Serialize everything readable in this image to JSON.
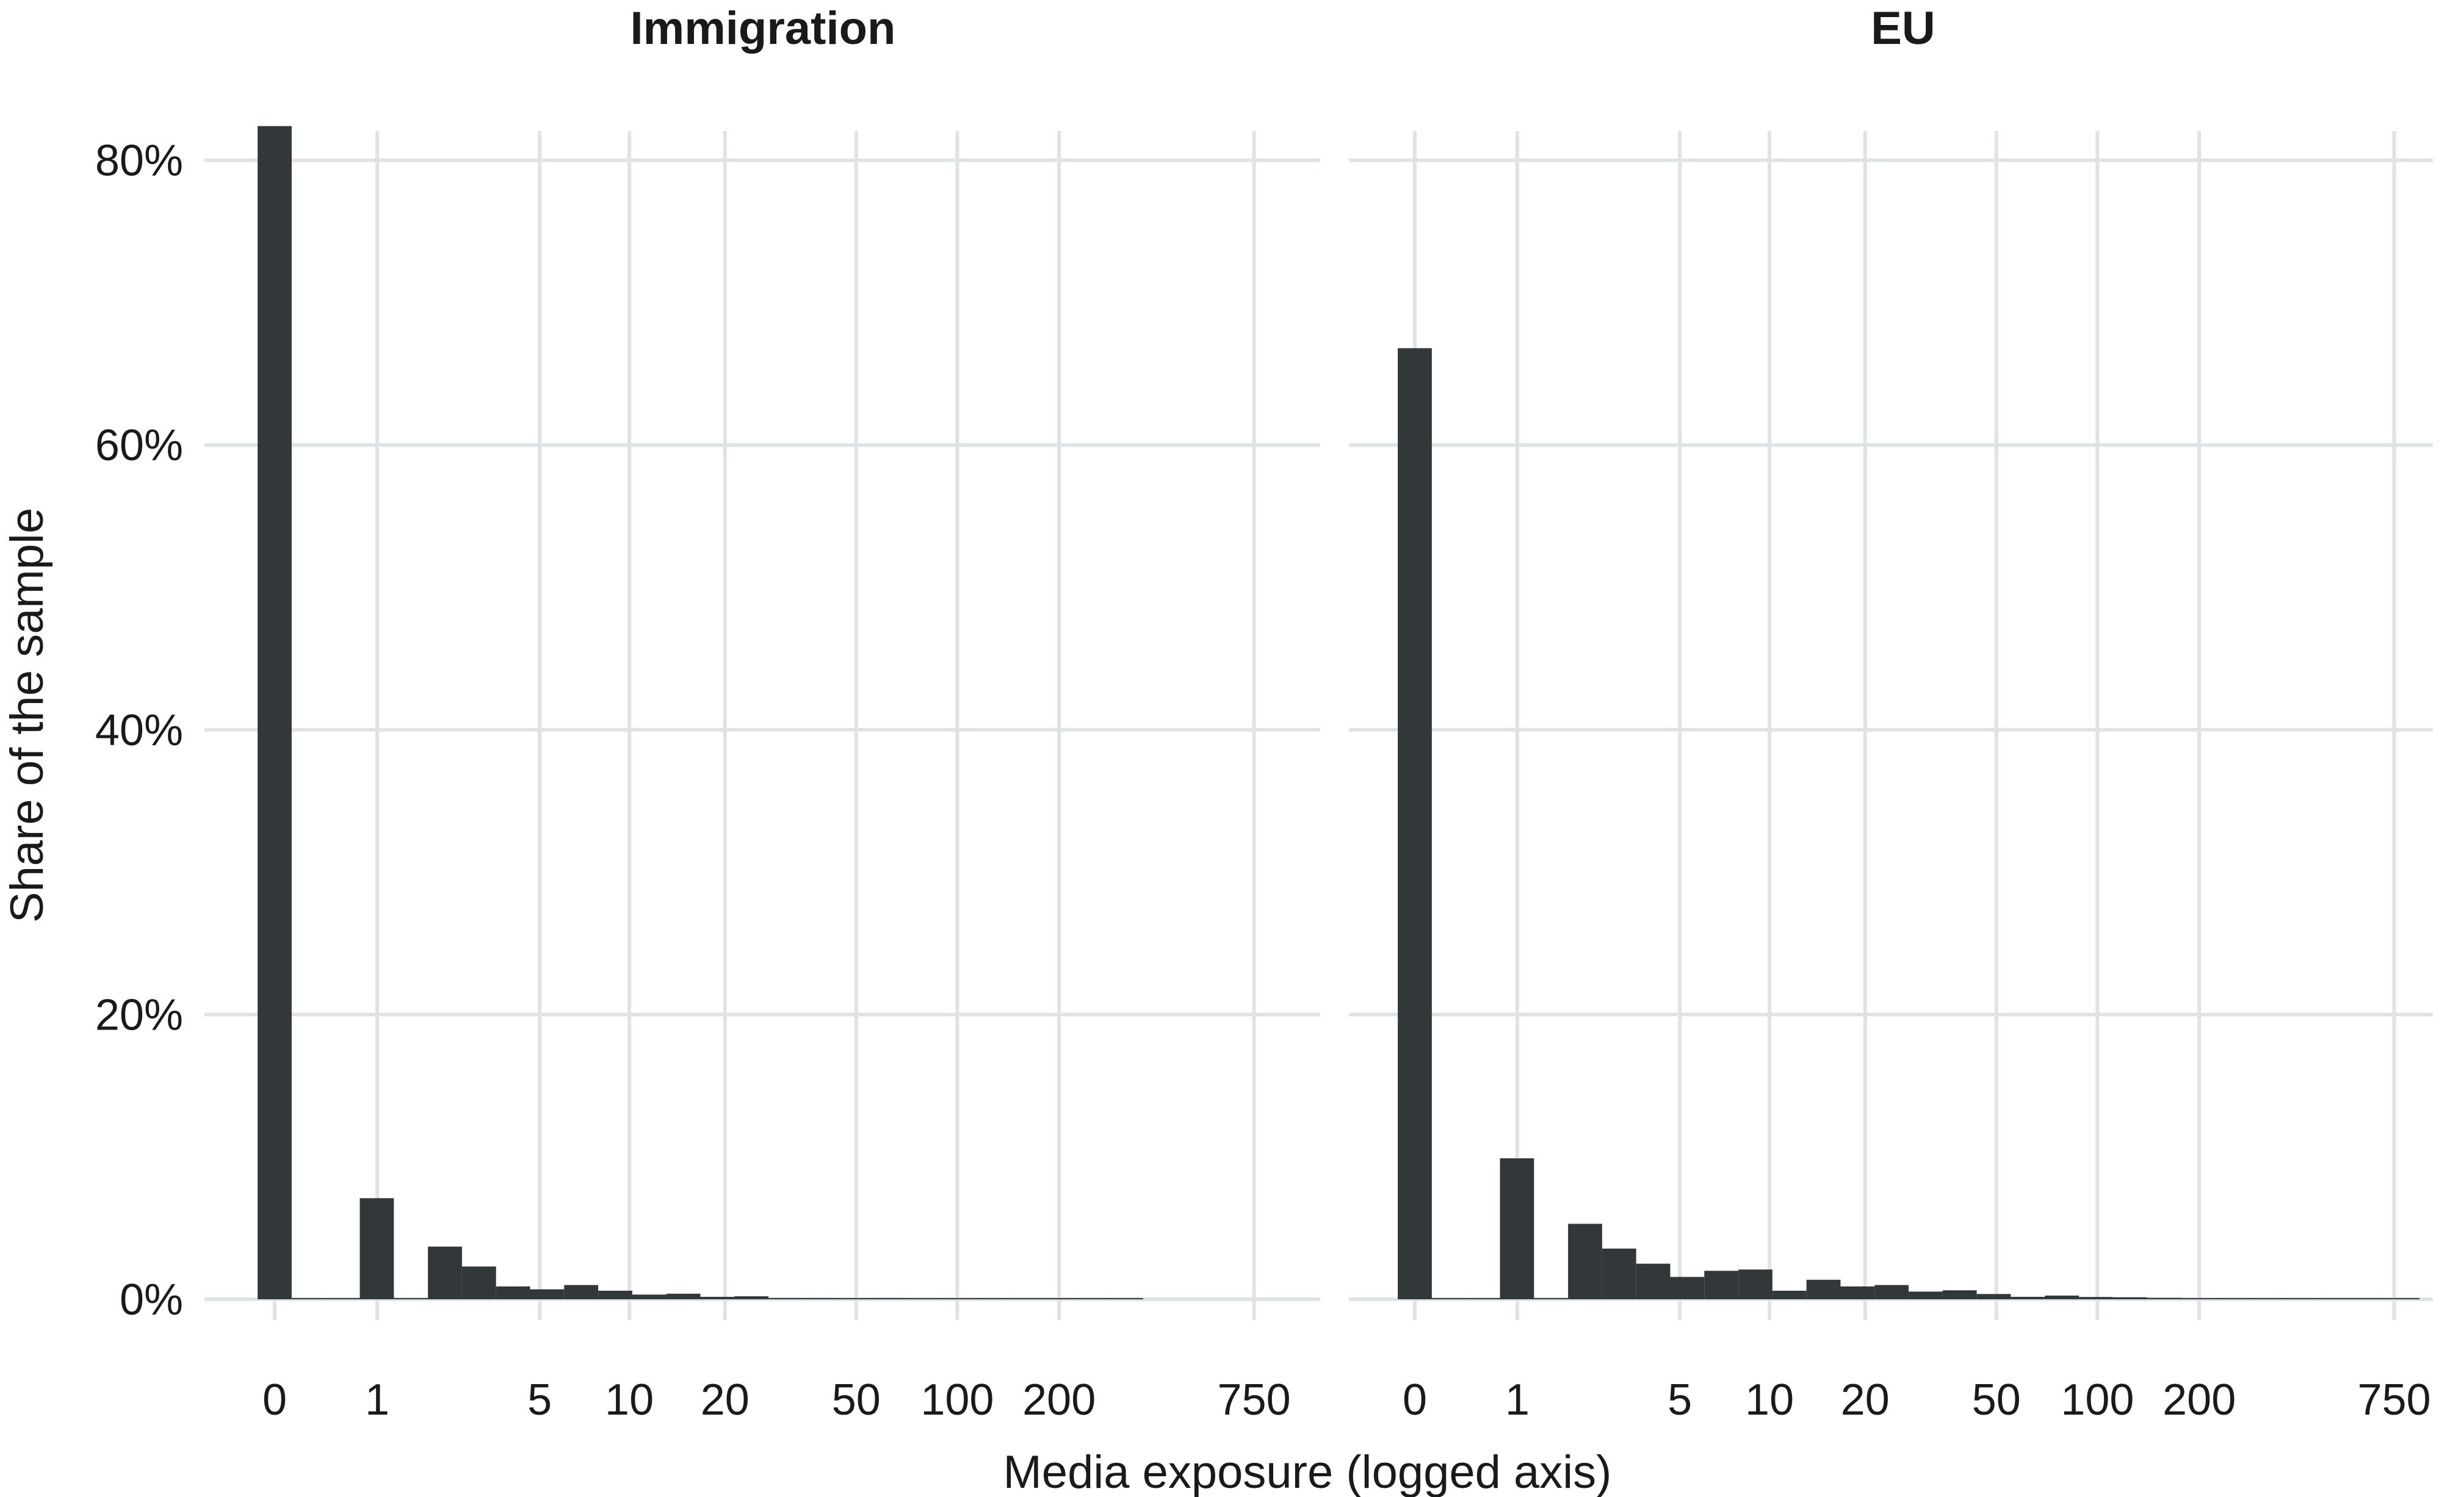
{
  "chart_data": [
    {
      "type": "bar",
      "title": "Immigration",
      "xlabel": "Media exposure (logged axis)",
      "ylabel": "Share of the sample",
      "x_scale": "log10(x+1)",
      "bin_width_log10": 0.1,
      "x_ticks": [
        "0",
        "1",
        "5",
        "10",
        "20",
        "50",
        "100",
        "200",
        "750"
      ],
      "y_ticks": [
        "0%",
        "20%",
        "40%",
        "60%",
        "80%"
      ],
      "ylim": [
        0,
        84
      ],
      "grid": true,
      "bar_color": "#323839",
      "bin_log10_centers": [
        0,
        0.1,
        0.2,
        0.3,
        0.4,
        0.5,
        0.6,
        0.7,
        0.8,
        0.9,
        1.0,
        1.1,
        1.2,
        1.3,
        1.4,
        1.5,
        1.6,
        1.7,
        1.8,
        1.9,
        2.0,
        2.1,
        2.2,
        2.3,
        2.4,
        2.5
      ],
      "values": [
        82.4,
        0,
        0,
        7.1,
        0,
        3.7,
        2.3,
        0.9,
        0.7,
        1.0,
        0.6,
        0.33,
        0.39,
        0.17,
        0.21,
        0.09,
        0.09,
        0.04,
        0.09,
        0.06,
        0.03,
        0.03,
        0.04,
        0,
        0,
        0.04
      ]
    },
    {
      "type": "bar",
      "title": "EU",
      "xlabel": "Media exposure (logged axis)",
      "ylabel": "Share of the sample",
      "x_scale": "log10(x+1)",
      "bin_width_log10": 0.1,
      "x_ticks": [
        "0",
        "1",
        "5",
        "10",
        "20",
        "50",
        "100",
        "200",
        "750"
      ],
      "y_ticks": [
        "0%",
        "20%",
        "40%",
        "60%",
        "80%"
      ],
      "ylim": [
        0,
        84
      ],
      "grid": true,
      "bar_color": "#323839",
      "bin_log10_centers": [
        0,
        0.1,
        0.2,
        0.3,
        0.4,
        0.5,
        0.6,
        0.7,
        0.8,
        0.9,
        1.0,
        1.1,
        1.2,
        1.3,
        1.4,
        1.5,
        1.6,
        1.7,
        1.8,
        1.9,
        2.0,
        2.1,
        2.2,
        2.3,
        2.4,
        2.5,
        2.6,
        2.7,
        2.8,
        2.9
      ],
      "values": [
        66.8,
        0,
        0,
        9.9,
        0,
        5.3,
        3.56,
        2.5,
        1.57,
        2.0,
        2.09,
        0.6,
        1.37,
        0.9,
        1.0,
        0.54,
        0.63,
        0.37,
        0.17,
        0.26,
        0.16,
        0.14,
        0.1,
        0.06,
        0,
        0.07,
        0.06,
        0.03,
        0.03,
        0.03
      ]
    }
  ]
}
